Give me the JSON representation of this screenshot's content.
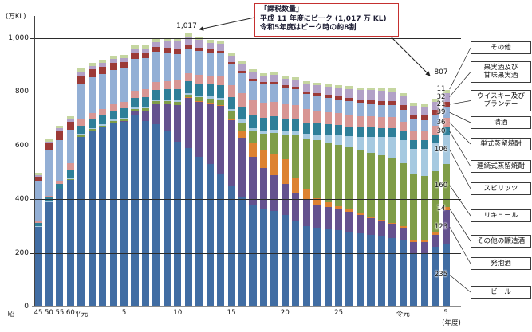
{
  "figure": {
    "y_axis": {
      "unit_label": "(万KL)",
      "ticks": [
        "0",
        "200",
        "400",
        "600",
        "800",
        "1,000"
      ],
      "tick_values": [
        0,
        200,
        400,
        600,
        800,
        1000
      ]
    },
    "x_axis": {
      "unit_label": "(年度)",
      "ticks": [
        {
          "text": "昭",
          "bar": null,
          "x": 14
        },
        {
          "text": "45",
          "bar": 0
        },
        {
          "text": "50",
          "bar": 1
        },
        {
          "text": "55",
          "bar": 2
        },
        {
          "text": "60",
          "bar": 3
        },
        {
          "text": "平元",
          "bar": 4
        },
        {
          "text": "5",
          "bar": 8
        },
        {
          "text": "10",
          "bar": 13
        },
        {
          "text": "15",
          "bar": 18
        },
        {
          "text": "20",
          "bar": 23
        },
        {
          "text": "25",
          "bar": 28
        },
        {
          "text": "令元",
          "bar": 34
        },
        {
          "text": "5",
          "bar": 38
        }
      ]
    },
    "annotation": {
      "line1": "「課税数量」",
      "line2": "平成 11 年度にピーク (1,017 万 KL)",
      "line3": "令和5年度はピーク時の約8割",
      "border_color": "#c5302f"
    },
    "peak_label": "1,017",
    "last_total_label": "807"
  },
  "chart_data": {
    "type": "bar",
    "stacked": true,
    "unit": "万KL",
    "ylim": [
      0,
      1000
    ],
    "x_years": [
      "昭45",
      "昭50",
      "昭55",
      "昭60",
      "平元",
      "平2",
      "平3",
      "平4",
      "平5",
      "平6",
      "平7",
      "平8",
      "平9",
      "平10",
      "平11",
      "平12",
      "平13",
      "平14",
      "平15",
      "平16",
      "平17",
      "平18",
      "平19",
      "平20",
      "平21",
      "平22",
      "平23",
      "平24",
      "平25",
      "平26",
      "平27",
      "平28",
      "平29",
      "平30",
      "令元",
      "令2",
      "令3",
      "令4",
      "令5"
    ],
    "series": [
      {
        "name": "ビール",
        "color": "#416da3",
        "last_value_label": "235",
        "values": [
          297,
          389,
          435,
          472,
          633,
          655,
          668,
          684,
          688,
          714,
          690,
          680,
          655,
          615,
          590,
          558,
          530,
          492,
          450,
          410,
          380,
          365,
          357,
          340,
          320,
          300,
          290,
          288,
          285,
          280,
          274,
          268,
          262,
          255,
          247,
          200,
          198,
          222,
          235
        ]
      },
      {
        "name": "発泡酒",
        "color": "#64528f",
        "last_value_label": "123",
        "values": [
          0,
          0,
          0,
          0,
          0,
          0,
          0,
          0,
          2,
          14,
          40,
          75,
          100,
          135,
          186,
          205,
          225,
          255,
          245,
          220,
          178,
          152,
          133,
          118,
          104,
          100,
          90,
          83,
          77,
          72,
          67,
          62,
          57,
          53,
          48,
          41,
          41,
          46,
          123
        ]
      },
      {
        "name": "その他の醸造酒",
        "color": "#dd8231",
        "last_value_label": "14",
        "values": [
          0,
          0,
          0,
          0,
          0,
          0,
          0,
          0,
          0,
          0,
          0,
          0,
          0,
          2,
          3,
          3,
          4,
          4,
          6,
          25,
          50,
          65,
          80,
          90,
          55,
          35,
          25,
          18,
          13,
          10,
          8,
          6,
          5,
          5,
          5,
          7,
          9,
          11,
          14
        ]
      },
      {
        "name": "リキュール",
        "color": "#7f9d48",
        "last_value_label": "160",
        "values": [
          0,
          0,
          2,
          3,
          6,
          7,
          7,
          8,
          8,
          9,
          9,
          10,
          10,
          11,
          11,
          14,
          17,
          20,
          26,
          32,
          48,
          62,
          78,
          92,
          160,
          190,
          215,
          222,
          228,
          232,
          235,
          238,
          240,
          242,
          235,
          245,
          240,
          225,
          160
        ]
      },
      {
        "name": "スピリッツ",
        "color": "#a6c9e0",
        "last_value_label": "106",
        "values": [
          2,
          2,
          2,
          3,
          4,
          4,
          4,
          4,
          5,
          5,
          5,
          5,
          6,
          6,
          6,
          7,
          7,
          8,
          8,
          9,
          9,
          10,
          11,
          12,
          14,
          18,
          22,
          28,
          34,
          40,
          47,
          57,
          67,
          77,
          84,
          96,
          101,
          103,
          106
        ]
      },
      {
        "name": "連続式蒸留焼酎",
        "color": "#2f7f99",
        "last_value_label": "30",
        "values": [
          13,
          15,
          18,
          33,
          31,
          32,
          33,
          34,
          35,
          36,
          37,
          38,
          39,
          42,
          45,
          45,
          45,
          46,
          47,
          49,
          50,
          50,
          50,
          48,
          46,
          44,
          42,
          41,
          40,
          38,
          37,
          36,
          35,
          34,
          33,
          31,
          30,
          30,
          30
        ]
      },
      {
        "name": "単式蒸留焼酎",
        "color": "#d89694",
        "last_value_label": "36",
        "values": [
          5,
          8,
          12,
          22,
          22,
          23,
          24,
          25,
          26,
          27,
          28,
          29,
          30,
          31,
          30,
          32,
          33,
          36,
          42,
          50,
          54,
          56,
          55,
          53,
          51,
          49,
          47,
          45,
          44,
          43,
          42,
          41,
          40,
          39,
          38,
          37,
          36,
          36,
          36
        ]
      },
      {
        "name": "清酒",
        "color": "#93afd5",
        "last_value_label": "39",
        "values": [
          153,
          168,
          150,
          127,
          136,
          134,
          130,
          127,
          123,
          119,
          116,
          112,
          107,
          100,
          90,
          89,
          85,
          82,
          78,
          74,
          71,
          68,
          65,
          62,
          59,
          57,
          55,
          54,
          52,
          51,
          49,
          48,
          46,
          45,
          43,
          41,
          40,
          39,
          39
        ]
      },
      {
        "name": "ウイスキー及びブランデー",
        "color": "#9c3a37",
        "last_value_label": "21",
        "values": [
          15,
          25,
          35,
          30,
          29,
          28,
          27,
          26,
          24,
          22,
          21,
          20,
          19,
          17,
          14,
          13,
          12,
          11,
          10,
          10,
          9,
          9,
          9,
          9,
          9,
          9,
          10,
          10,
          11,
          12,
          13,
          14,
          15,
          16,
          17,
          17,
          18,
          20,
          21
        ]
      },
      {
        "name": "果実酒及び甘味果実酒",
        "color": "#b2a1c7",
        "last_value_label": "32",
        "values": [
          6,
          8,
          10,
          10,
          14,
          14,
          14,
          15,
          15,
          15,
          16,
          17,
          22,
          30,
          31,
          27,
          25,
          24,
          24,
          24,
          24,
          24,
          25,
          25,
          26,
          27,
          28,
          30,
          32,
          33,
          35,
          36,
          36,
          36,
          35,
          34,
          33,
          32,
          32
        ]
      },
      {
        "name": "その他",
        "color": "#c5d6a0",
        "last_value_label": "11",
        "values": [
          9,
          10,
          10,
          10,
          12,
          12,
          12,
          12,
          12,
          12,
          12,
          12,
          12,
          11,
          11,
          11,
          11,
          11,
          11,
          11,
          10,
          10,
          10,
          10,
          10,
          10,
          10,
          10,
          10,
          10,
          10,
          10,
          10,
          10,
          10,
          10,
          10,
          11,
          11
        ]
      }
    ],
    "legend_top_to_bottom": [
      {
        "label": "その他",
        "series": "その他"
      },
      {
        "label": "果実酒及び\n甘味果実酒",
        "series": "果実酒及び甘味果実酒"
      },
      {
        "label": "ウイスキー及び\nブランデー",
        "series": "ウイスキー及びブランデー"
      },
      {
        "label": "清酒",
        "series": "清酒"
      },
      {
        "label": "単式蒸留焼酎",
        "series": "単式蒸留焼酎"
      },
      {
        "label": "連続式蒸留焼酎",
        "series": "連続式蒸留焼酎"
      },
      {
        "label": "スピリッツ",
        "series": "スピリッツ"
      },
      {
        "label": "リキュール",
        "series": "リキュール"
      },
      {
        "label": "その他の醸造酒",
        "series": "その他の醸造酒"
      },
      {
        "label": "発泡酒",
        "series": "発泡酒"
      },
      {
        "label": "ビール",
        "series": "ビール"
      }
    ]
  }
}
